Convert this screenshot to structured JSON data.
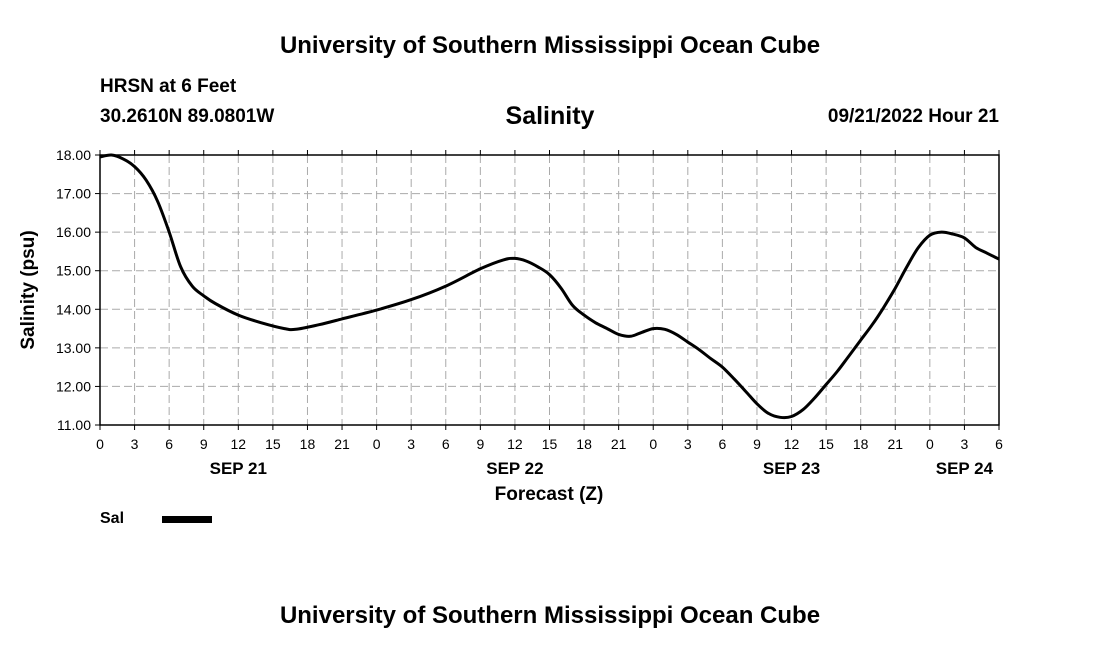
{
  "header": {
    "title_top": "University of Southern Mississippi Ocean Cube",
    "station": "HRSN at 6 Feet",
    "coords": "30.2610N  89.0801W",
    "chart_title": "Salinity",
    "datetime": "09/21/2022 Hour 21",
    "title_bottom": "University of Southern Mississippi Ocean Cube"
  },
  "legend": {
    "label": "Sal",
    "color": "#000000"
  },
  "chart_data": {
    "type": "line",
    "title": "Salinity",
    "xlabel": "Forecast (Z)",
    "ylabel": "Salinity (psu)",
    "ylim": [
      11.0,
      18.0
    ],
    "xlim": [
      0,
      78
    ],
    "y_ticks": [
      "11.00",
      "12.00",
      "13.00",
      "14.00",
      "15.00",
      "16.00",
      "17.00",
      "18.00"
    ],
    "x_tick_labels": [
      "0",
      "3",
      "6",
      "9",
      "12",
      "15",
      "18",
      "21",
      "0",
      "3",
      "6",
      "9",
      "12",
      "15",
      "18",
      "21",
      "0",
      "3",
      "6",
      "9",
      "12",
      "15",
      "18",
      "21",
      "0",
      "3",
      "6"
    ],
    "date_labels": [
      {
        "label": "SEP 21",
        "hour": 12
      },
      {
        "label": "SEP 22",
        "hour": 36
      },
      {
        "label": "SEP 23",
        "hour": 60
      },
      {
        "label": "SEP 24",
        "hour": 75
      }
    ],
    "grid": true,
    "series": [
      {
        "name": "Sal",
        "x": [
          0,
          1,
          2,
          3,
          4,
          5,
          6,
          7,
          8,
          9,
          10,
          12,
          14,
          16,
          17,
          19,
          21,
          24,
          27,
          30,
          33,
          35,
          36,
          37,
          38,
          39,
          40,
          41,
          42,
          43,
          44,
          45,
          46,
          47,
          48,
          49,
          50,
          51,
          52,
          53,
          54,
          55,
          56,
          57,
          58,
          59,
          60,
          61,
          62,
          63,
          64,
          65,
          66,
          67,
          68,
          69,
          70,
          71,
          72,
          73,
          74,
          75,
          76,
          77,
          78
        ],
        "values": [
          17.95,
          18.0,
          17.9,
          17.7,
          17.35,
          16.8,
          16.0,
          15.1,
          14.6,
          14.35,
          14.15,
          13.85,
          13.65,
          13.5,
          13.48,
          13.6,
          13.75,
          13.98,
          14.25,
          14.6,
          15.05,
          15.28,
          15.32,
          15.25,
          15.1,
          14.9,
          14.55,
          14.1,
          13.85,
          13.65,
          13.5,
          13.35,
          13.3,
          13.4,
          13.5,
          13.48,
          13.35,
          13.15,
          12.95,
          12.72,
          12.5,
          12.2,
          11.88,
          11.55,
          11.3,
          11.2,
          11.22,
          11.4,
          11.7,
          12.05,
          12.4,
          12.8,
          13.2,
          13.6,
          14.05,
          14.55,
          15.1,
          15.6,
          15.92,
          16.0,
          15.95,
          15.85,
          15.6,
          15.45,
          15.3
        ]
      }
    ]
  }
}
